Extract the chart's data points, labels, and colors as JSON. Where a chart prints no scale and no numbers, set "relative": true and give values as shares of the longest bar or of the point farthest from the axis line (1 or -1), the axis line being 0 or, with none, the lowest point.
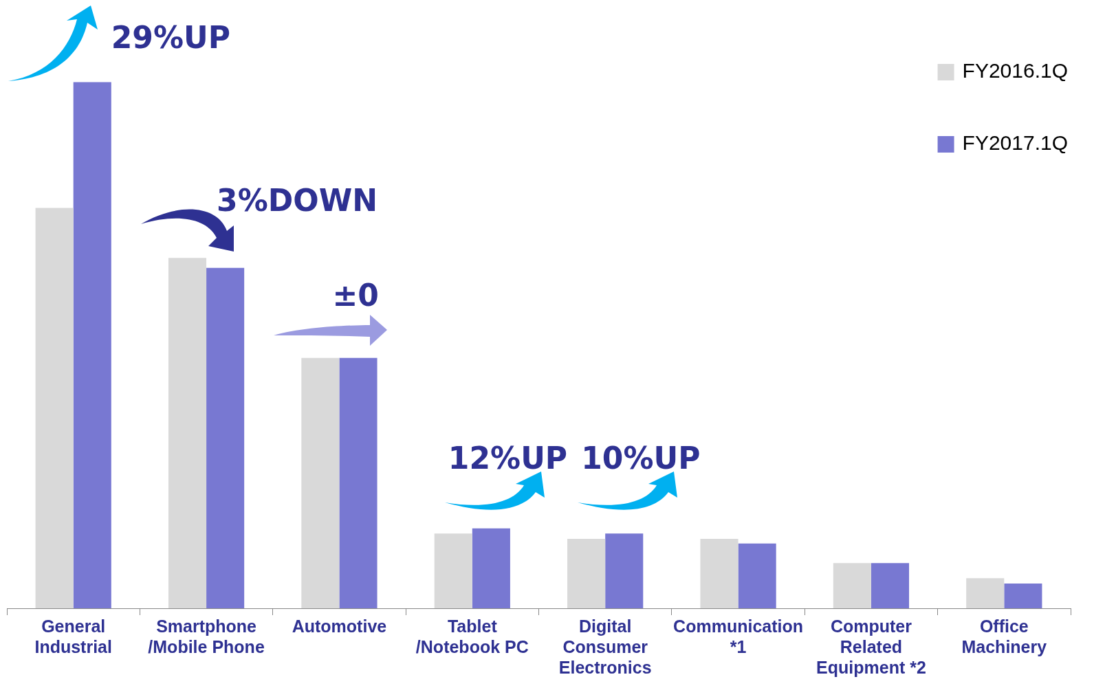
{
  "chart_data": {
    "type": "bar",
    "relative": true,
    "categories": [
      "General\nIndustrial",
      "Smartphone\n/Mobile Phone",
      "Automotive",
      "Tablet\n/Notebook PC",
      "Digital\nConsumer\nElectronics",
      "Communication\n*1",
      "Computer\nRelated\nEquipment *2",
      "Office\nMachinery"
    ],
    "series": [
      {
        "name": "FY2016.1Q",
        "color": "#d9d9d9",
        "values": [
          0.761,
          0.666,
          0.476,
          0.142,
          0.132,
          0.132,
          0.086,
          0.057
        ]
      },
      {
        "name": "FY2017.1Q",
        "color": "#7878d2",
        "values": [
          1,
          0.647,
          0.476,
          0.152,
          0.142,
          0.123,
          0.086,
          0.047
        ]
      }
    ],
    "annotations": [
      "29%UP",
      "3%DOWN",
      "±0",
      "12%UP",
      "10%UP"
    ],
    "legend": "top right",
    "grid": false
  }
}
